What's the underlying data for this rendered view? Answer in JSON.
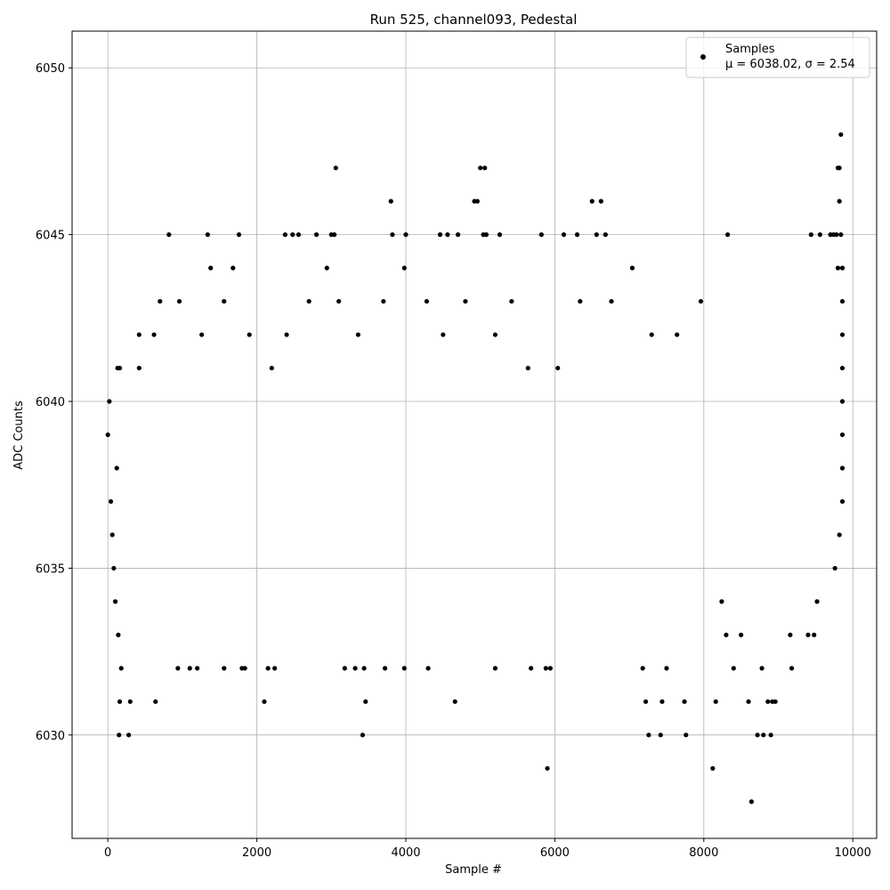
{
  "chart_data": {
    "type": "scatter",
    "title": "Run 525, channel093, Pedestal",
    "xlabel": "Sample #",
    "ylabel": "ADC Counts",
    "xlim": [
      -480,
      10320
    ],
    "ylim": [
      6026.9,
      6051.1
    ],
    "x_ticks": [
      0,
      2000,
      4000,
      6000,
      8000,
      10000
    ],
    "x_tick_labels": [
      "0",
      "2000",
      "4000",
      "6000",
      "8000",
      "10000"
    ],
    "y_ticks": [
      6030,
      6035,
      6040,
      6045,
      6050
    ],
    "y_tick_labels": [
      "6030",
      "6035",
      "6040",
      "6045",
      "6050"
    ],
    "grid": true,
    "legend": {
      "position": "top-right",
      "series_label": "Samples",
      "stats_label": "μ = 6038.02, σ = 2.54"
    },
    "series": [
      {
        "name": "Samples",
        "color": "#000000",
        "points": [
          [
            0,
            6039
          ],
          [
            20,
            6040
          ],
          [
            40,
            6037
          ],
          [
            60,
            6036
          ],
          [
            80,
            6035
          ],
          [
            100,
            6034
          ],
          [
            120,
            6038
          ],
          [
            140,
            6033
          ],
          [
            160,
            6031
          ],
          [
            180,
            6032
          ],
          [
            130,
            6041
          ],
          [
            160,
            6041
          ],
          [
            150,
            6030
          ],
          [
            280,
            6030
          ],
          [
            300,
            6031
          ],
          [
            420,
            6042
          ],
          [
            420,
            6041
          ],
          [
            640,
            6031
          ],
          [
            700,
            6043
          ],
          [
            820,
            6045
          ],
          [
            940,
            6032
          ],
          [
            1100,
            6032
          ],
          [
            1200,
            6032
          ],
          [
            1340,
            6045
          ],
          [
            1380,
            6044
          ],
          [
            1560,
            6032
          ],
          [
            1680,
            6044
          ],
          [
            1760,
            6045
          ],
          [
            1800,
            6032
          ],
          [
            1840,
            6032
          ],
          [
            2100,
            6031
          ],
          [
            2150,
            6032
          ],
          [
            2240,
            6032
          ],
          [
            2380,
            6045
          ],
          [
            2480,
            6045
          ],
          [
            2560,
            6045
          ],
          [
            2800,
            6045
          ],
          [
            3060,
            6047
          ],
          [
            3000,
            6045
          ],
          [
            3040,
            6045
          ],
          [
            3180,
            6032
          ],
          [
            3320,
            6032
          ],
          [
            3420,
            6030
          ],
          [
            3460,
            6031
          ],
          [
            3440,
            6032
          ],
          [
            3720,
            6032
          ],
          [
            3800,
            6046
          ],
          [
            3820,
            6045
          ],
          [
            3980,
            6032
          ],
          [
            4000,
            6045
          ],
          [
            4300,
            6032
          ],
          [
            4460,
            6045
          ],
          [
            4560,
            6045
          ],
          [
            4660,
            6031
          ],
          [
            4700,
            6045
          ],
          [
            4920,
            6046
          ],
          [
            4960,
            6046
          ],
          [
            5000,
            6047
          ],
          [
            5060,
            6047
          ],
          [
            5040,
            6045
          ],
          [
            5080,
            6045
          ],
          [
            5200,
            6032
          ],
          [
            5260,
            6045
          ],
          [
            5680,
            6032
          ],
          [
            5820,
            6045
          ],
          [
            5900,
            6029
          ],
          [
            5880,
            6032
          ],
          [
            5940,
            6032
          ],
          [
            6120,
            6045
          ],
          [
            6300,
            6045
          ],
          [
            6500,
            6046
          ],
          [
            6560,
            6045
          ],
          [
            6620,
            6046
          ],
          [
            6680,
            6045
          ],
          [
            7040,
            6044
          ],
          [
            7180,
            6032
          ],
          [
            7220,
            6031
          ],
          [
            7260,
            6030
          ],
          [
            7420,
            6030
          ],
          [
            7440,
            6031
          ],
          [
            7500,
            6032
          ],
          [
            7740,
            6031
          ],
          [
            7760,
            6030
          ],
          [
            8120,
            6029
          ],
          [
            8160,
            6031
          ],
          [
            8320,
            6045
          ],
          [
            8400,
            6032
          ],
          [
            8600,
            6031
          ],
          [
            8640,
            6028
          ],
          [
            8720,
            6030
          ],
          [
            8800,
            6030
          ],
          [
            8860,
            6031
          ],
          [
            8900,
            6030
          ],
          [
            8920,
            6031
          ],
          [
            9180,
            6032
          ],
          [
            9440,
            6045
          ],
          [
            9560,
            6045
          ],
          [
            9760,
            6035
          ],
          [
            9800,
            6047
          ],
          [
            9820,
            6046
          ],
          [
            9840,
            6048
          ],
          [
            9820,
            6047
          ],
          [
            9700,
            6045
          ],
          [
            9740,
            6045
          ],
          [
            9780,
            6045
          ],
          [
            9840,
            6045
          ],
          [
            9800,
            6044
          ],
          [
            9860,
            6044
          ],
          [
            9860,
            6043
          ],
          [
            9860,
            6042
          ],
          [
            9860,
            6041
          ],
          [
            9860,
            6040
          ],
          [
            9860,
            6039
          ],
          [
            9860,
            6038
          ],
          [
            9860,
            6037
          ],
          [
            9820,
            6036
          ],
          [
            9520,
            6034
          ],
          [
            9480,
            6033
          ],
          [
            9400,
            6033
          ],
          [
            9160,
            6033
          ],
          [
            8960,
            6031
          ],
          [
            8780,
            6032
          ],
          [
            8500,
            6033
          ],
          [
            8300,
            6033
          ],
          [
            8240,
            6034
          ],
          [
            7960,
            6043
          ],
          [
            7640,
            6042
          ],
          [
            7300,
            6042
          ],
          [
            6760,
            6043
          ],
          [
            6340,
            6043
          ],
          [
            6040,
            6041
          ],
          [
            5640,
            6041
          ],
          [
            5420,
            6043
          ],
          [
            5200,
            6042
          ],
          [
            4800,
            6043
          ],
          [
            4500,
            6042
          ],
          [
            4280,
            6043
          ],
          [
            3980,
            6044
          ],
          [
            3700,
            6043
          ],
          [
            3360,
            6042
          ],
          [
            3100,
            6043
          ],
          [
            2940,
            6044
          ],
          [
            2700,
            6043
          ],
          [
            2400,
            6042
          ],
          [
            2200,
            6041
          ],
          [
            1900,
            6042
          ],
          [
            1560,
            6043
          ],
          [
            1260,
            6042
          ],
          [
            960,
            6043
          ],
          [
            620,
            6042
          ]
        ]
      }
    ]
  }
}
